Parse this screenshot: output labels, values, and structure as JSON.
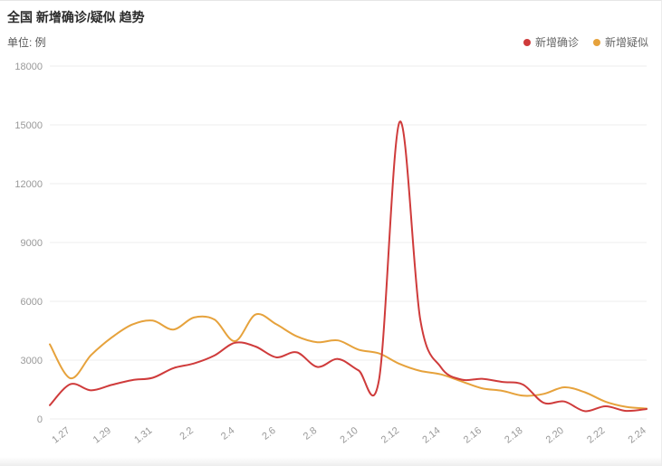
{
  "header": {
    "title": "全国 新增确诊/疑似 趋势",
    "unit_label": "单位: 例"
  },
  "legend": [
    {
      "label": "新增确诊",
      "color": "#cf3b3b"
    },
    {
      "label": "新增疑似",
      "color": "#e6a23c"
    }
  ],
  "chart_data": {
    "type": "line",
    "title": "全国 新增确诊/疑似 趋势",
    "ylabel": "单位: 例",
    "xlabel": "",
    "grid": true,
    "legend_position": "top-right",
    "ylim": [
      0,
      18000
    ],
    "yticks": [
      0,
      3000,
      6000,
      9000,
      12000,
      15000,
      18000
    ],
    "x": [
      "1.26",
      "1.27",
      "1.28",
      "1.29",
      "1.30",
      "1.31",
      "2.1",
      "2.2",
      "2.3",
      "2.4",
      "2.5",
      "2.6",
      "2.7",
      "2.8",
      "2.9",
      "2.10",
      "2.11",
      "2.12",
      "2.13",
      "2.14",
      "2.15",
      "2.16",
      "2.17",
      "2.18",
      "2.19",
      "2.20",
      "2.21",
      "2.22",
      "2.23",
      "2.24"
    ],
    "x_tick_indices": [
      1,
      3,
      5,
      7,
      9,
      11,
      13,
      15,
      17,
      19,
      21,
      23,
      25,
      27,
      29
    ],
    "series": [
      {
        "name": "新增确诊",
        "color": "#cf3b3b",
        "values": [
          700,
          1771,
          1459,
          1737,
          1982,
          2102,
          2590,
          2829,
          3235,
          3887,
          3694,
          3143,
          3399,
          2656,
          3062,
          2478,
          2015,
          15152,
          5090,
          2641,
          2009,
          2048,
          1886,
          1749,
          820,
          889,
          397,
          648,
          409,
          508
        ]
      },
      {
        "name": "新增疑似",
        "color": "#e6a23c",
        "values": [
          3806,
          2077,
          3248,
          4148,
          4812,
          5019,
          4562,
          5173,
          5072,
          3971,
          5328,
          4833,
          4214,
          3916,
          4008,
          3536,
          3342,
          2807,
          2450,
          2277,
          1918,
          1563,
          1432,
          1185,
          1277,
          1614,
          1361,
          882,
          620,
          530
        ]
      }
    ]
  }
}
